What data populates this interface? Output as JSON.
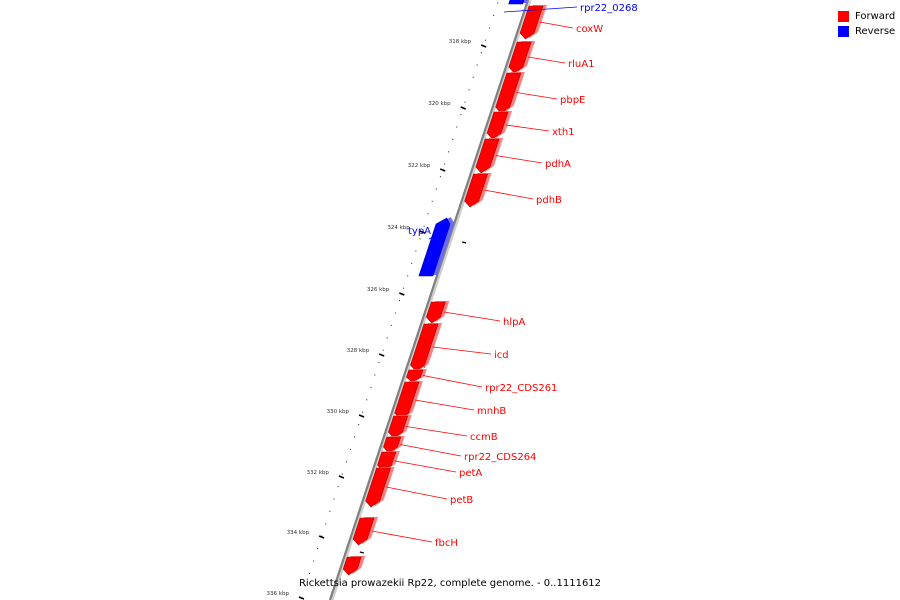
{
  "legend": {
    "forward": {
      "label": "Forward",
      "color": "#ff0000"
    },
    "reverse": {
      "label": "Reverse",
      "color": "#0000ff"
    }
  },
  "caption": "Rickettsia prowazekii Rp22, complete genome. - 0..1111612",
  "axis": {
    "tick_labels": [
      "318 kbp",
      "320 kbp",
      "322 kbp",
      "324 kbp",
      "326 kbp",
      "328 kbp",
      "330 kbp",
      "332 kbp",
      "334 kbp",
      "336 kbp"
    ]
  },
  "genes": [
    {
      "name": "rpr22_0268",
      "strand": "reverse"
    },
    {
      "name": "coxW",
      "strand": "forward"
    },
    {
      "name": "rluA1",
      "strand": "forward"
    },
    {
      "name": "pbpE",
      "strand": "forward"
    },
    {
      "name": "xth1",
      "strand": "forward"
    },
    {
      "name": "pdhA",
      "strand": "forward"
    },
    {
      "name": "pdhB",
      "strand": "forward"
    },
    {
      "name": "typA",
      "strand": "reverse"
    },
    {
      "name": "hlpA",
      "strand": "forward"
    },
    {
      "name": "icd",
      "strand": "forward"
    },
    {
      "name": "rpr22_CDS261",
      "strand": "forward"
    },
    {
      "name": "mnhB",
      "strand": "forward"
    },
    {
      "name": "ccmB",
      "strand": "forward"
    },
    {
      "name": "rpr22_CDS264",
      "strand": "forward"
    },
    {
      "name": "petA",
      "strand": "forward"
    },
    {
      "name": "petB",
      "strand": "forward"
    },
    {
      "name": "fbcH",
      "strand": "forward"
    },
    {
      "name": "",
      "strand": "forward"
    }
  ]
}
